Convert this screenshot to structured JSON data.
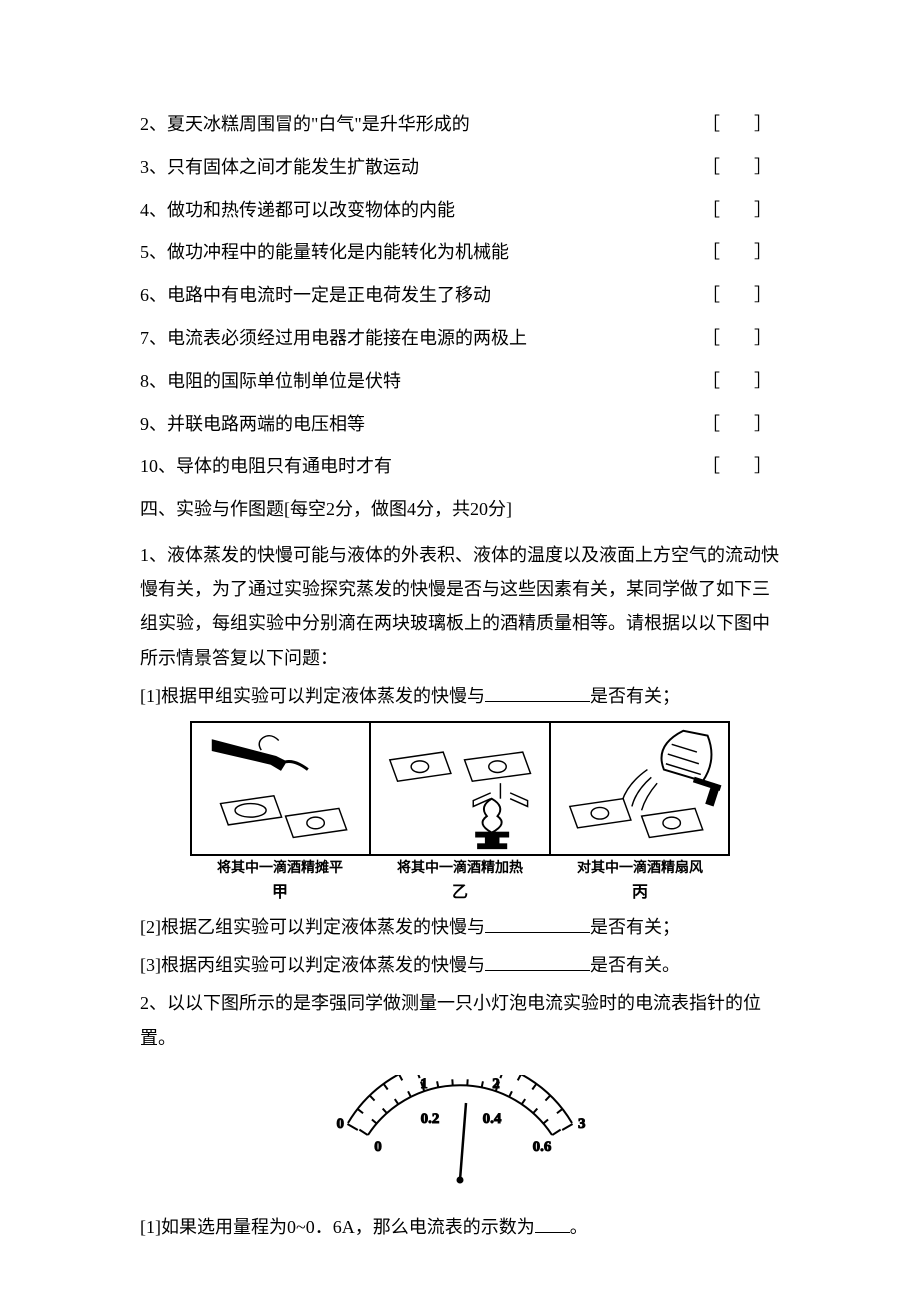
{
  "true_false_questions": {
    "q2": {
      "text": "2、夏天冰糕周围冒的\"白气\"是升华形成的",
      "bracket": "［　］"
    },
    "q3": {
      "text": "3、只有固体之间才能发生扩散运动",
      "bracket": "［　］"
    },
    "q4": {
      "text": "4、做功和热传递都可以改变物体的内能",
      "bracket": "［　］"
    },
    "q5": {
      "text": "5、做功冲程中的能量转化是内能转化为机械能",
      "bracket": "［　］"
    },
    "q6": {
      "text": "6、电路中有电流时一定是正电荷发生了移动",
      "bracket": "［　］"
    },
    "q7": {
      "text": "7、电流表必须经过用电器才能接在电源的两极上",
      "bracket": "［　］"
    },
    "q8": {
      "text": "8、电阻的国际单位制单位是伏特",
      "bracket": "［　］"
    },
    "q9": {
      "text": "9、并联电路两端的电压相等",
      "bracket": "［　］"
    },
    "q10": {
      "text": "10、导体的电阻只有通电时才有",
      "bracket": "［　］"
    }
  },
  "section4": {
    "title": "四、实验与作图题[每空2分，做图4分，共20分]",
    "q1": {
      "intro": "1、液体蒸发的快慢可能与液体的外表积、液体的温度以及液面上方空气的流动快慢有关，为了通过实验探究蒸发的快慢是否与这些因素有关，某同学做了如下三组实验，每组实验中分别滴在两块玻璃板上的酒精质量相等。请根据以以下图中所示情景答复以下问题：",
      "sub1_pre": "[1]根据甲组实验可以判定液体蒸发的快慢与",
      "sub1_suf": "是否有关；",
      "sub2_pre": "[2]根据乙组实验可以判定液体蒸发的快慢与",
      "sub2_suf": "是否有关；",
      "sub3_pre": "[3]根据丙组实验可以判定液体蒸发的快慢与",
      "sub3_suf": "是否有关。",
      "diagram": {
        "caption1": "将其中一滴酒精摊平",
        "label1": "甲",
        "caption2": "将其中一滴酒精加热",
        "label2": "乙",
        "caption3": "对其中一滴酒精扇风",
        "label3": "丙"
      }
    },
    "q2": {
      "intro": "2、以以下图所示的是李强同学做测量一只小灯泡电流实验时的电流表指针的位置。",
      "sub1_pre": "[1]如果选用量程为0~0．6A，那么电流表的示数为",
      "sub1_suf": "。",
      "ammeter": {
        "top_scale": {
          "ticks": [
            "0",
            "1",
            "2",
            "3"
          ]
        },
        "bottom_scale": {
          "ticks": [
            "0",
            "0.2",
            "0.4",
            "0.6"
          ]
        }
      }
    }
  }
}
